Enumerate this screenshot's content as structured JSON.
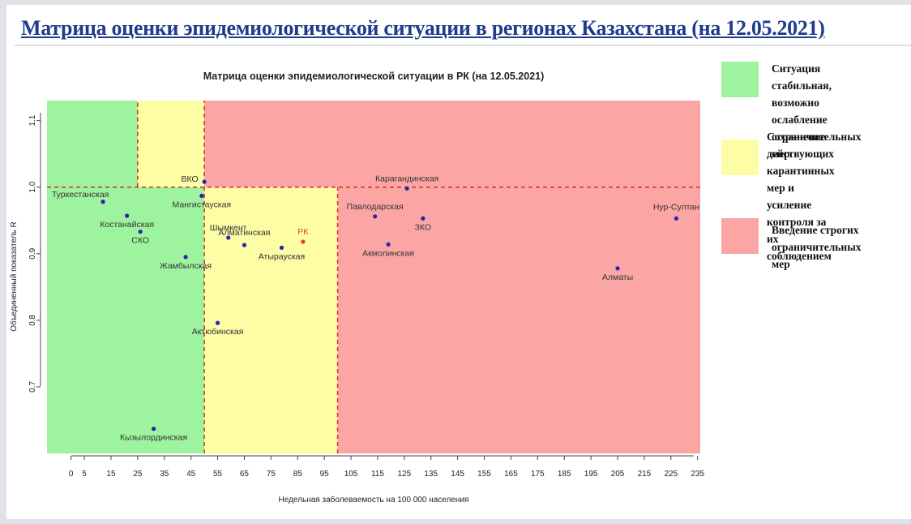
{
  "page": {
    "title": "Матрица оценки эпидемиологической ситуации в регионах Казахстана (на 12.05.2021)"
  },
  "legend": [
    {
      "label": "Ситуация стабильная,\nвозможно ослабление\nограничительных мер",
      "color": "#9ef49e"
    },
    {
      "label": "Сохранение\nдействующих\nкарантинных мер и\nусиление контроля за их\nсоблюдением",
      "color": "#fdfda6"
    },
    {
      "label": "Введение строгих\nограничительных мер",
      "color": "#fca5a5"
    }
  ],
  "chart_data": {
    "type": "scatter",
    "title": "Матрица оценки эпидемиологической ситуации в РК (на 12.05.2021)",
    "xlabel": "Недельная заболеваемость на 100 000 населения",
    "ylabel": "Объединенный показатель R",
    "xlim": [
      -9,
      236
    ],
    "ylim": [
      0.6,
      1.13
    ],
    "xticks": [
      0,
      5,
      15,
      25,
      35,
      45,
      55,
      65,
      75,
      85,
      95,
      105,
      115,
      125,
      135,
      145,
      155,
      165,
      175,
      185,
      195,
      205,
      215,
      225,
      235
    ],
    "yticks": [
      0.7,
      0.8,
      0.9,
      1.0,
      1.1
    ],
    "ytick_labels": [
      "0.7",
      "0.8",
      "0.9",
      "1.0",
      "1.1"
    ],
    "zones": [
      {
        "x0": -9,
        "x1": 50,
        "y0": 0.6,
        "y1": 1.13,
        "color": "#9ef49e"
      },
      {
        "x0": 25,
        "x1": 50,
        "y0": 1.0,
        "y1": 1.13,
        "color": "#fdfda6"
      },
      {
        "x0": 50,
        "x1": 100,
        "y0": 0.6,
        "y1": 1.0,
        "color": "#fdfda6"
      },
      {
        "x0": 50,
        "x1": 236,
        "y0": 1.0,
        "y1": 1.13,
        "color": "#fca5a5"
      },
      {
        "x0": 100,
        "x1": 236,
        "y0": 0.6,
        "y1": 1.0,
        "color": "#fca5a5"
      }
    ],
    "ref_lines": [
      {
        "axis": "x",
        "value": 25,
        "from": 1.0,
        "to": 1.13
      },
      {
        "axis": "x",
        "value": 50,
        "from": 0.6,
        "to": 1.13
      },
      {
        "axis": "x",
        "value": 100,
        "from": 0.6,
        "to": 1.0
      },
      {
        "axis": "y",
        "value": 1.0,
        "from": -9,
        "to": 236
      }
    ],
    "points": [
      {
        "name": "Туркестанская",
        "x": 12,
        "y": 0.978,
        "label_dx": -28,
        "label_dy": -6,
        "color": "#2a23a8",
        "label_color": "#333333"
      },
      {
        "name": "Костанайская",
        "x": 21,
        "y": 0.957,
        "label_dx": 0,
        "label_dy": 14,
        "color": "#2a23a8",
        "label_color": "#333333"
      },
      {
        "name": "СКО",
        "x": 26,
        "y": 0.933,
        "label_dx": 0,
        "label_dy": 14,
        "color": "#2a23a8",
        "label_color": "#333333"
      },
      {
        "name": "Жамбылская",
        "x": 43,
        "y": 0.895,
        "label_dx": 0,
        "label_dy": 14,
        "color": "#2a23a8",
        "label_color": "#333333"
      },
      {
        "name": "Кызылординская",
        "x": 31,
        "y": 0.637,
        "label_dx": 0,
        "label_dy": 14,
        "color": "#2a23a8",
        "label_color": "#333333"
      },
      {
        "name": "ВКО",
        "x": 50,
        "y": 1.008,
        "label_dx": -18,
        "label_dy": 0,
        "color": "#2a23a8",
        "label_color": "#333333"
      },
      {
        "name": "Мангистауская",
        "x": 49,
        "y": 0.987,
        "label_dx": 0,
        "label_dy": 14,
        "color": "#2a23a8",
        "label_color": "#333333"
      },
      {
        "name": "Шымкент",
        "x": 59,
        "y": 0.924,
        "label_dx": 0,
        "label_dy": -9,
        "color": "#2a23a8",
        "label_color": "#333333"
      },
      {
        "name": "Алматинская",
        "x": 65,
        "y": 0.913,
        "label_dx": 0,
        "label_dy": -12,
        "color": "#2a23a8",
        "label_color": "#333333"
      },
      {
        "name": "Атырауская",
        "x": 79,
        "y": 0.909,
        "label_dx": 0,
        "label_dy": 14,
        "color": "#2a23a8",
        "label_color": "#333333"
      },
      {
        "name": "РК",
        "x": 87,
        "y": 0.918,
        "label_dx": 0,
        "label_dy": -9,
        "color": "#e8401f",
        "label_color": "#e8401f"
      },
      {
        "name": "Актюбинская",
        "x": 55,
        "y": 0.796,
        "label_dx": 0,
        "label_dy": 14,
        "color": "#2a23a8",
        "label_color": "#333333"
      },
      {
        "name": "Карагандинская",
        "x": 126,
        "y": 0.998,
        "label_dx": 0,
        "label_dy": -9,
        "color": "#2a23a8",
        "label_color": "#333333"
      },
      {
        "name": "Павлодарская",
        "x": 114,
        "y": 0.956,
        "label_dx": 0,
        "label_dy": -9,
        "color": "#2a23a8",
        "label_color": "#333333"
      },
      {
        "name": "ЗКО",
        "x": 132,
        "y": 0.953,
        "label_dx": 0,
        "label_dy": 14,
        "color": "#2a23a8",
        "label_color": "#333333"
      },
      {
        "name": "Акмолинская",
        "x": 119,
        "y": 0.914,
        "label_dx": 0,
        "label_dy": 14,
        "color": "#2a23a8",
        "label_color": "#333333"
      },
      {
        "name": "Алматы",
        "x": 205,
        "y": 0.878,
        "label_dx": 0,
        "label_dy": 14,
        "color": "#2a23a8",
        "label_color": "#333333"
      },
      {
        "name": "Нур-Султан",
        "x": 227,
        "y": 0.953,
        "label_dx": 0,
        "label_dy": -11,
        "color": "#2a23a8",
        "label_color": "#333333"
      }
    ],
    "grid": false
  }
}
